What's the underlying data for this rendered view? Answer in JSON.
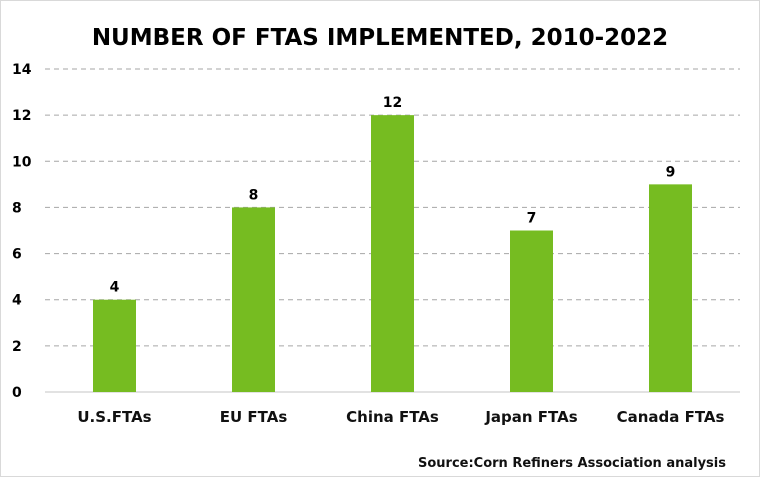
{
  "chart_data": {
    "type": "bar",
    "title": "NUMBER OF FTAS IMPLEMENTED, 2010-2022",
    "categories": [
      "U.S.FTAs",
      "EU FTAs",
      "China FTAs",
      "Japan FTAs",
      "Canada FTAs"
    ],
    "values": [
      4,
      8,
      12,
      7,
      9
    ],
    "data_labels": [
      "4",
      "8",
      "12",
      "7",
      "9"
    ],
    "ylim": [
      0,
      14
    ],
    "yticks": [
      "0",
      "2",
      "4",
      "6",
      "8",
      "10",
      "12",
      "14"
    ],
    "grid": true,
    "grid_style": "dashed",
    "bar_color": "#76bc21",
    "annotation": "Source:Corn Refiners Association analysis"
  }
}
